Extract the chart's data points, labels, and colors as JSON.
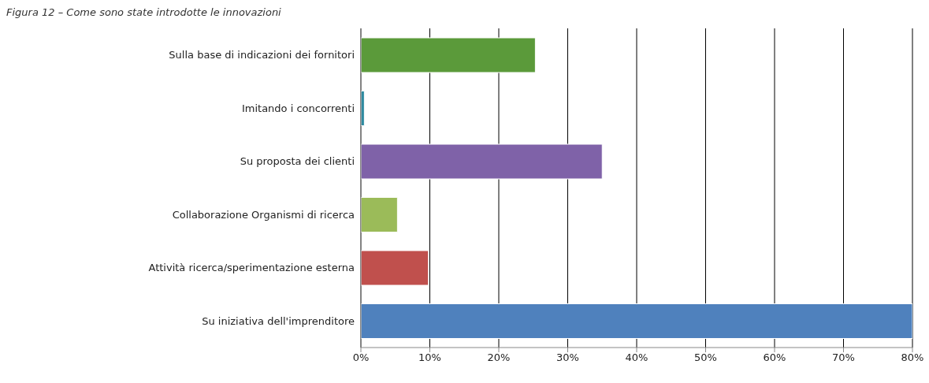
{
  "chart_data": {
    "type": "bar",
    "orientation": "horizontal",
    "title": "Figura 12 – Come sono state introdotte le innovazioni",
    "categories": [
      "Sulla base di indicazioni dei fornitori",
      "Imitando i concorrenti",
      "Su proposta dei clienti",
      "Collaborazione Organismi di ricerca",
      "Attività ricerca/sperimentazione esterna",
      "Su iniziativa dell'imprenditore"
    ],
    "values": [
      25.3,
      0.5,
      35,
      5.3,
      9.8,
      80
    ],
    "colors": [
      "#5b9a3a",
      "#2e8aa0",
      "#7f62a8",
      "#9bbb59",
      "#c0504d",
      "#4f81bd"
    ],
    "xlim": [
      0,
      80
    ],
    "xticks": [
      {
        "value": 0,
        "label": "0%"
      },
      {
        "value": 10,
        "label": "10%"
      },
      {
        "value": 20,
        "label": "20%"
      },
      {
        "value": 30,
        "label": "30%"
      },
      {
        "value": 40,
        "label": "40%"
      },
      {
        "value": 50,
        "label": "50%"
      },
      {
        "value": 60,
        "label": "60%"
      },
      {
        "value": 70,
        "label": "70%"
      },
      {
        "value": 80,
        "label": "80%"
      }
    ],
    "grid": "x"
  }
}
